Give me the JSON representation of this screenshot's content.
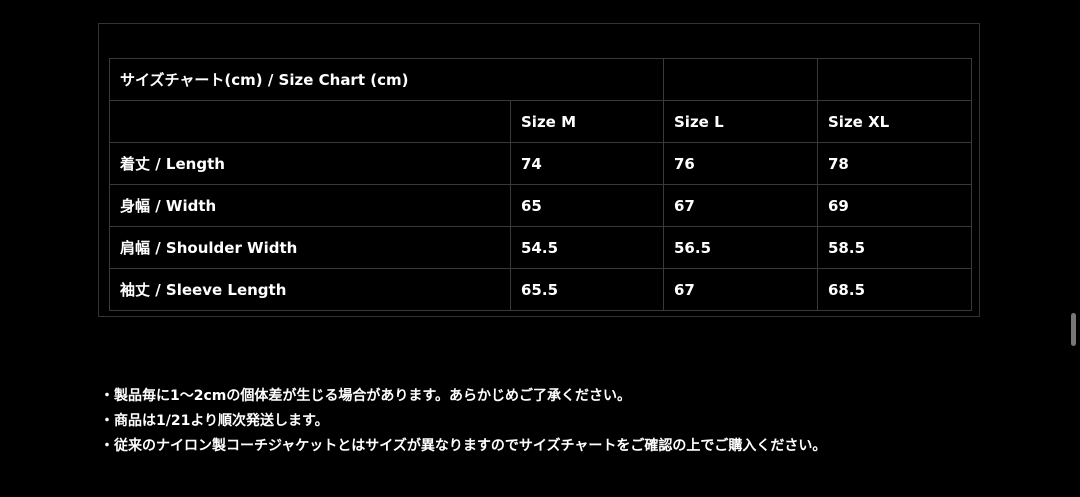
{
  "size_chart": {
    "title": "サイズチャート(cm) / Size Chart (cm)",
    "columns": [
      "",
      "Size M",
      "Size L",
      "Size XL"
    ],
    "rows": [
      {
        "label": "着丈 / Length",
        "values": [
          "74",
          "76",
          "78"
        ]
      },
      {
        "label": "身幅 / Width",
        "values": [
          "65",
          "67",
          "69"
        ]
      },
      {
        "label": "肩幅 / Shoulder Width",
        "values": [
          "54.5",
          "56.5",
          "58.5"
        ]
      },
      {
        "label": "袖丈 / Sleeve Length",
        "values": [
          "65.5",
          "67",
          "68.5"
        ]
      }
    ]
  },
  "notes": [
    "・製品毎に1〜2cmの個体差が生じる場合があります。あらかじめご了承ください。",
    "・商品は1/21より順次発送します。",
    "・従来のナイロン製コーチジャケットとはサイズが異なりますのでサイズチャートをご確認の上でご購入ください。"
  ]
}
